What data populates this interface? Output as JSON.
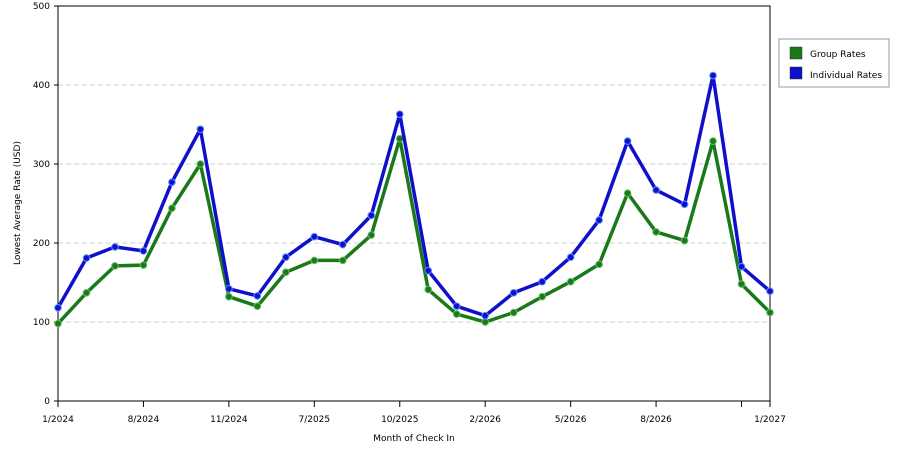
{
  "chart_data": {
    "type": "line",
    "title": "",
    "xlabel": "Month of Check In",
    "ylabel": "Lowest Average Rate (USD)",
    "ylim": [
      0,
      500
    ],
    "yticks": [
      0,
      100,
      200,
      300,
      400,
      500
    ],
    "x_tick_labels": [
      {
        "index": 0,
        "label": "1/2024"
      },
      {
        "index": 3,
        "label": "8/2024"
      },
      {
        "index": 6,
        "label": "11/2024"
      },
      {
        "index": 9,
        "label": "7/2025"
      },
      {
        "index": 12,
        "label": "10/2025"
      },
      {
        "index": 15,
        "label": "2/2026"
      },
      {
        "index": 18,
        "label": "5/2026"
      },
      {
        "index": 21,
        "label": "8/2026"
      },
      {
        "index": 24,
        "label": ""
      },
      {
        "index": 25,
        "label": "1/2027"
      }
    ],
    "point_count": 26,
    "grid": "horizontal-dashed",
    "legend_position": "right",
    "series": [
      {
        "name": "Group Rates",
        "color": "#1a7a1a",
        "values": [
          98,
          137,
          171,
          172,
          244,
          300,
          132,
          120,
          163,
          178,
          178,
          210,
          332,
          141,
          110,
          100,
          112,
          132,
          151,
          173,
          263,
          214,
          203,
          329,
          148,
          112
        ]
      },
      {
        "name": "Individual Rates",
        "color": "#1010cc",
        "values": [
          118,
          181,
          195,
          190,
          277,
          344,
          142,
          133,
          182,
          208,
          198,
          235,
          363,
          165,
          120,
          108,
          137,
          151,
          182,
          229,
          329,
          267,
          249,
          412,
          170,
          139
        ]
      }
    ]
  }
}
